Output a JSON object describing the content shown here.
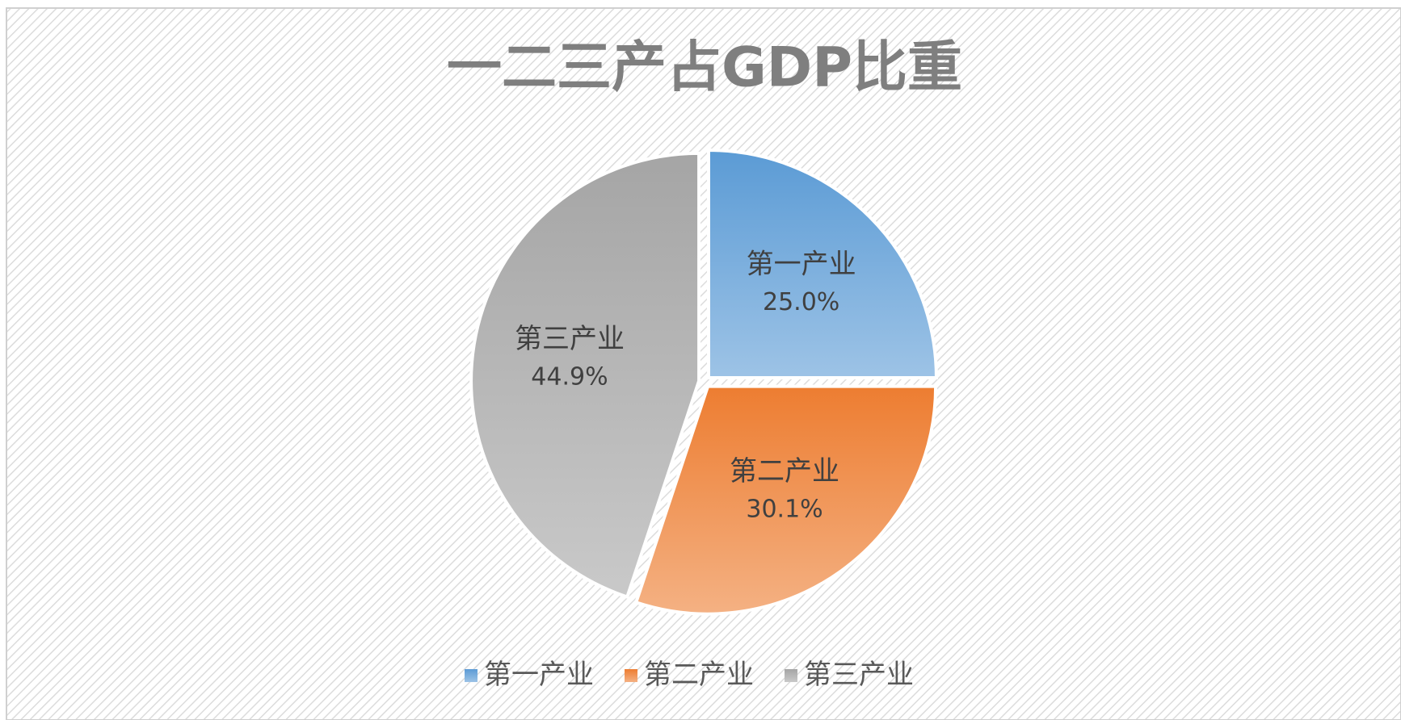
{
  "chart_data": {
    "type": "pie",
    "title": "一二三产占GDP比重",
    "categories": [
      "第一产业",
      "第二产业",
      "第三产业"
    ],
    "values": [
      25.0,
      30.1,
      44.9
    ],
    "value_labels": [
      "25.0%",
      "30.1%",
      "44.9%"
    ],
    "colors": [
      "#5b9bd5",
      "#ed7d31",
      "#a5a5a5"
    ]
  }
}
